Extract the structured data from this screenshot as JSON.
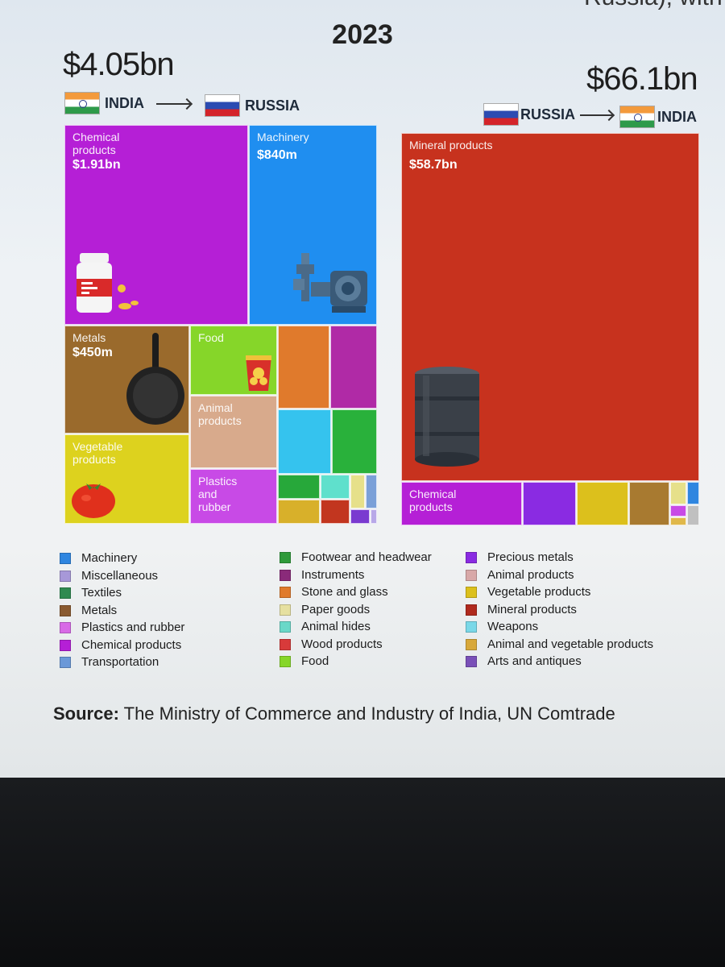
{
  "header": {
    "corner_fragment": "Russia), with c",
    "year": "2023"
  },
  "chart_data": [
    {
      "type": "treemap",
      "title": "India to Russia exports 2023",
      "total": "$4.05bn",
      "from": "INDIA",
      "to": "RUSSIA",
      "cells": [
        {
          "category": "Chemical products",
          "label": "Chemical\nproducts",
          "value_text": "$1.91bn",
          "value_bn": 1.91,
          "color": "#b51fd6",
          "icon": "medicine-bottle-icon"
        },
        {
          "category": "Machinery",
          "label": "Machinery",
          "value_text": "$840m",
          "value_bn": 0.84,
          "color": "#1f8ef0",
          "icon": "water-pump-icon"
        },
        {
          "category": "Metals",
          "label": "Metals",
          "value_text": "$450m",
          "value_bn": 0.45,
          "color": "#9a6a2c",
          "icon": "frying-pan-icon"
        },
        {
          "category": "Food",
          "label": "Food",
          "color": "#86d629",
          "icon": "chips-bag-icon"
        },
        {
          "category": "Animal products",
          "label": "Animal\nproducts",
          "color": "#d8aa8c"
        },
        {
          "category": "Vegetable products",
          "label": "Vegetable\nproducts",
          "color": "#ddd21e",
          "icon": "tomato-icon"
        },
        {
          "category": "Plastics and rubber",
          "label": "Plastics\nand\nrubber",
          "color": "#c84ae6"
        },
        {
          "category": "Stone and glass",
          "color": "#e07a2c"
        },
        {
          "category": "Instruments",
          "color": "#b02aa6"
        },
        {
          "category": "Weapons",
          "color": "#35c3ee"
        },
        {
          "category": "Footwear and headwear",
          "color": "#29b13b"
        },
        {
          "category": "Textiles",
          "color": "#27a83a"
        },
        {
          "category": "Animal hides",
          "color": "#5fe0cc"
        },
        {
          "category": "Paper goods",
          "color": "#e6e08a"
        },
        {
          "category": "Transportation",
          "color": "#7aa0d8"
        },
        {
          "category": "Animal and vegetable products",
          "color": "#d8b02a"
        },
        {
          "category": "Wood products",
          "color": "#c2361f"
        },
        {
          "category": "Arts and antiques",
          "color": "#7a3ad0"
        },
        {
          "category": "Miscellaneous",
          "color": "#b8a8e8"
        }
      ]
    },
    {
      "type": "treemap",
      "title": "Russia to India exports 2023",
      "total": "$66.1bn",
      "from": "RUSSIA",
      "to": "INDIA",
      "cells": [
        {
          "category": "Mineral products",
          "label": "Mineral products",
          "value_text": "$58.7bn",
          "value_bn": 58.7,
          "color": "#c7321e",
          "icon": "oil-barrel-icon"
        },
        {
          "category": "Chemical products",
          "label": "Chemical\nproducts",
          "color": "#b51fd6"
        },
        {
          "category": "Precious metals",
          "color": "#8a2be2"
        },
        {
          "category": "Vegetable products",
          "color": "#dcc01c"
        },
        {
          "category": "Metals",
          "color": "#a87a30"
        },
        {
          "category": "Paper goods",
          "color": "#e6e08a"
        },
        {
          "category": "Machinery",
          "color": "#2f86e0"
        },
        {
          "category": "Plastics and rubber",
          "color": "#c84ae6"
        },
        {
          "category": "Miscellaneous",
          "color": "#c0c0c0"
        },
        {
          "category": "Animal and vegetable products",
          "color": "#e0b84a"
        }
      ]
    }
  ],
  "legend": {
    "columns": [
      [
        {
          "label": "Machinery",
          "color": "#2f86e0"
        },
        {
          "label": "Miscellaneous",
          "color": "#a798d8"
        },
        {
          "label": "Textiles",
          "color": "#2f8a50"
        },
        {
          "label": "Metals",
          "color": "#8a5a30"
        },
        {
          "label": "Plastics and rubber",
          "color": "#d86ae6"
        },
        {
          "label": "Chemical products",
          "color": "#b51fd6"
        },
        {
          "label": "Transportation",
          "color": "#6a98d8"
        }
      ],
      [
        {
          "label": "Footwear and headwear",
          "color": "#2f9a3a"
        },
        {
          "label": "Instruments",
          "color": "#8a2a7a"
        },
        {
          "label": "Stone and glass",
          "color": "#e07a2c"
        },
        {
          "label": "Paper goods",
          "color": "#e6e0a0"
        },
        {
          "label": "Animal hides",
          "color": "#6ad8c8"
        },
        {
          "label": "Wood products",
          "color": "#d83a3a"
        },
        {
          "label": "Food",
          "color": "#86d629"
        }
      ],
      [
        {
          "label": "Precious metals",
          "color": "#8a2be2"
        },
        {
          "label": "Animal products",
          "color": "#d8a8a8"
        },
        {
          "label": "Vegetable products",
          "color": "#dcc01c"
        },
        {
          "label": "Mineral products",
          "color": "#b02a1e"
        },
        {
          "label": "Weapons",
          "color": "#7ad8e8"
        },
        {
          "label": "Animal and vegetable products",
          "color": "#d8a83a"
        },
        {
          "label": "Arts and antiques",
          "color": "#7a50b8"
        }
      ]
    ]
  },
  "source": {
    "prefix": "Source:",
    "text": " The Ministry of Commerce and Industry of India, UN Comtrade"
  }
}
